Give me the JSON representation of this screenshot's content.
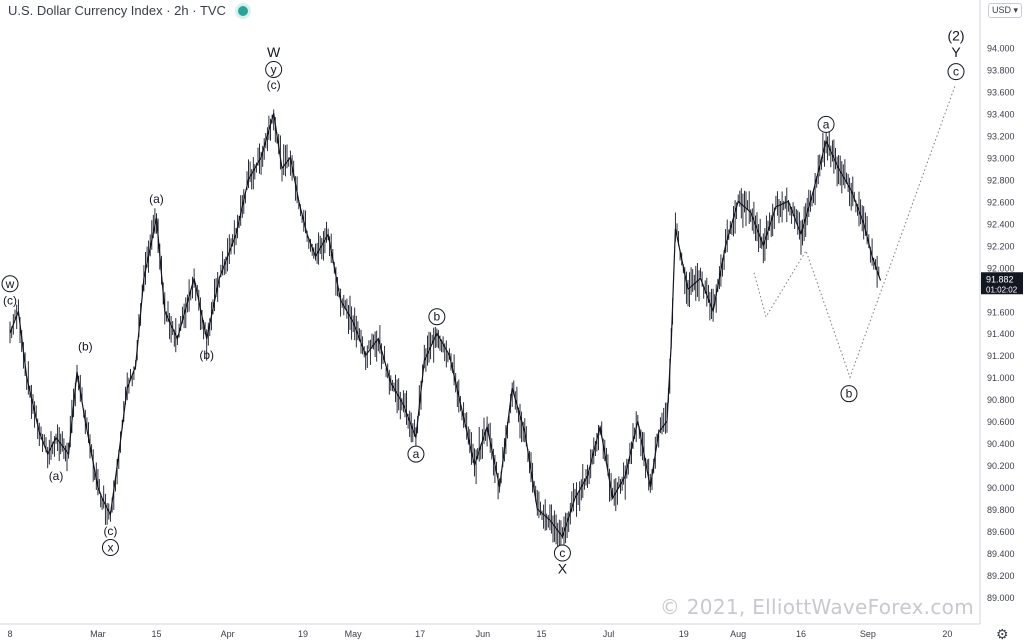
{
  "header": {
    "title": "U.S. Dollar Currency Index · 2h · TVC",
    "currency_select": "USD"
  },
  "watermark": "© 2021, ElliottWaveForex.com",
  "price_tag": {
    "value": "91.882",
    "countdown": "01:02:02",
    "bg": "#131722"
  },
  "colors": {
    "series": "#131722",
    "axis_text": "#3a3e4a",
    "grid": "#eceff4",
    "projection": "#787b86"
  },
  "icons": {
    "settings": "gear-icon"
  },
  "chart_data": {
    "type": "line",
    "title": "U.S. Dollar Currency Index · 2h · TVC",
    "xlabel": "",
    "ylabel": "",
    "ylim": [
      88.9,
      94.25
    ],
    "xlim": [
      "2021-02-08",
      "2021-09-23"
    ],
    "y_ticks": [
      89.0,
      89.2,
      89.4,
      89.6,
      89.8,
      90.0,
      90.2,
      90.4,
      90.6,
      90.8,
      91.0,
      91.2,
      91.4,
      91.6,
      91.8,
      92.0,
      92.2,
      92.4,
      92.6,
      92.8,
      93.0,
      93.2,
      93.4,
      93.6,
      93.8,
      94.0
    ],
    "y_tick_labels": [
      "89.000",
      "89.200",
      "89.400",
      "89.600",
      "89.800",
      "90.000",
      "90.200",
      "90.400",
      "90.600",
      "90.800",
      "91.000",
      "91.200",
      "91.400",
      "91.600",
      "91.800",
      "92.000",
      "92.200",
      "92.400",
      "92.600",
      "92.800",
      "93.000",
      "93.200",
      "93.400",
      "93.600",
      "93.800",
      "94.000"
    ],
    "x_ticks": [
      {
        "date": "2021-02-08",
        "label": "8"
      },
      {
        "date": "2021-03-01",
        "label": "Mar"
      },
      {
        "date": "2021-03-15",
        "label": "15"
      },
      {
        "date": "2021-04-01",
        "label": "Apr"
      },
      {
        "date": "2021-04-19",
        "label": "19"
      },
      {
        "date": "2021-05-01",
        "label": "May"
      },
      {
        "date": "2021-05-17",
        "label": "17"
      },
      {
        "date": "2021-06-01",
        "label": "Jun"
      },
      {
        "date": "2021-06-15",
        "label": "15"
      },
      {
        "date": "2021-07-01",
        "label": "Jul"
      },
      {
        "date": "2021-07-19",
        "label": "19"
      },
      {
        "date": "2021-08-01",
        "label": "Aug"
      },
      {
        "date": "2021-08-16",
        "label": "16"
      },
      {
        "date": "2021-09-01",
        "label": "Sep"
      },
      {
        "date": "2021-09-20",
        "label": "20"
      }
    ],
    "grid": false,
    "series": [
      {
        "points": [
          [
            "2021-02-08",
            91.4
          ],
          [
            "2021-02-10",
            91.6
          ],
          [
            "2021-02-12",
            91.0
          ],
          [
            "2021-02-15",
            90.5
          ],
          [
            "2021-02-17",
            90.3
          ],
          [
            "2021-02-19",
            90.45
          ],
          [
            "2021-02-22",
            90.3
          ],
          [
            "2021-02-24",
            91.05
          ],
          [
            "2021-02-26",
            90.6
          ],
          [
            "2021-03-01",
            90.0
          ],
          [
            "2021-03-02",
            89.9
          ],
          [
            "2021-03-04",
            89.75
          ],
          [
            "2021-03-06",
            90.3
          ],
          [
            "2021-03-08",
            90.9
          ],
          [
            "2021-03-10",
            91.1
          ],
          [
            "2021-03-12",
            91.9
          ],
          [
            "2021-03-15",
            92.45
          ],
          [
            "2021-03-17",
            91.6
          ],
          [
            "2021-03-20",
            91.35
          ],
          [
            "2021-03-24",
            91.9
          ],
          [
            "2021-03-27",
            91.35
          ],
          [
            "2021-03-30",
            91.9
          ],
          [
            "2021-04-03",
            92.3
          ],
          [
            "2021-04-06",
            92.8
          ],
          [
            "2021-04-09",
            93.0
          ],
          [
            "2021-04-12",
            93.4
          ],
          [
            "2021-04-14",
            92.9
          ],
          [
            "2021-04-16",
            93.0
          ],
          [
            "2021-04-18",
            92.6
          ],
          [
            "2021-04-20",
            92.3
          ],
          [
            "2021-04-22",
            92.1
          ],
          [
            "2021-04-25",
            92.3
          ],
          [
            "2021-04-28",
            91.7
          ],
          [
            "2021-05-01",
            91.5
          ],
          [
            "2021-05-04",
            91.2
          ],
          [
            "2021-05-07",
            91.35
          ],
          [
            "2021-05-10",
            90.95
          ],
          [
            "2021-05-13",
            90.75
          ],
          [
            "2021-05-16",
            90.45
          ],
          [
            "2021-05-18",
            91.15
          ],
          [
            "2021-05-21",
            91.4
          ],
          [
            "2021-05-24",
            91.2
          ],
          [
            "2021-05-27",
            90.7
          ],
          [
            "2021-05-30",
            90.2
          ],
          [
            "2021-06-02",
            90.55
          ],
          [
            "2021-06-05",
            90.0
          ],
          [
            "2021-06-08",
            90.9
          ],
          [
            "2021-06-11",
            90.5
          ],
          [
            "2021-06-14",
            89.8
          ],
          [
            "2021-06-17",
            89.7
          ],
          [
            "2021-06-20",
            89.55
          ],
          [
            "2021-06-23",
            89.9
          ],
          [
            "2021-06-26",
            90.1
          ],
          [
            "2021-06-29",
            90.55
          ],
          [
            "2021-07-02",
            89.9
          ],
          [
            "2021-07-05",
            90.1
          ],
          [
            "2021-07-08",
            90.6
          ],
          [
            "2021-07-11",
            90.0
          ],
          [
            "2021-07-13",
            90.5
          ],
          [
            "2021-07-15",
            90.6
          ],
          [
            "2021-07-16",
            91.3
          ],
          [
            "2021-07-17",
            92.35
          ],
          [
            "2021-07-20",
            91.8
          ],
          [
            "2021-07-23",
            91.9
          ],
          [
            "2021-07-26",
            91.6
          ],
          [
            "2021-07-29",
            92.2
          ],
          [
            "2021-08-01",
            92.6
          ],
          [
            "2021-08-04",
            92.5
          ],
          [
            "2021-08-07",
            92.2
          ],
          [
            "2021-08-10",
            92.55
          ],
          [
            "2021-08-13",
            92.6
          ],
          [
            "2021-08-16",
            92.3
          ],
          [
            "2021-08-19",
            92.7
          ],
          [
            "2021-08-22",
            93.15
          ],
          [
            "2021-08-25",
            92.9
          ],
          [
            "2021-08-28",
            92.7
          ],
          [
            "2021-08-31",
            92.4
          ],
          [
            "2021-09-02",
            92.1
          ],
          [
            "2021-09-04",
            91.88
          ]
        ]
      }
    ],
    "projection": [
      [
        "2021-09-05",
        91.95
      ],
      [
        "2021-09-11",
        91.55
      ],
      [
        "2021-09-21",
        92.15
      ],
      [
        "2021-09-23",
        91.0
      ],
      [
        "2021-09-23",
        93.65
      ]
    ],
    "annotations": [
      {
        "text": "w",
        "circled": true,
        "date": "2021-02-08",
        "y": 91.85
      },
      {
        "text": "(c)",
        "circled": false,
        "date": "2021-02-08",
        "y": 91.7
      },
      {
        "text": "(b)",
        "circled": false,
        "date": "2021-02-26",
        "y": 91.28
      },
      {
        "text": "(a)",
        "circled": false,
        "date": "2021-02-19",
        "y": 90.1
      },
      {
        "text": "(c)",
        "circled": false,
        "date": "2021-03-04",
        "y": 89.6
      },
      {
        "text": "x",
        "circled": true,
        "date": "2021-03-04",
        "y": 89.45
      },
      {
        "text": "(a)",
        "circled": false,
        "date": "2021-03-15",
        "y": 92.62
      },
      {
        "text": "(b)",
        "circled": false,
        "date": "2021-03-27",
        "y": 91.2
      },
      {
        "text": "W",
        "circled": false,
        "date": "2021-04-12",
        "y": 93.95
      },
      {
        "text": "y",
        "circled": true,
        "date": "2021-04-12",
        "y": 93.8
      },
      {
        "text": "(c)",
        "circled": false,
        "date": "2021-04-12",
        "y": 93.66
      },
      {
        "text": "b",
        "circled": true,
        "date": "2021-05-21",
        "y": 91.55
      },
      {
        "text": "a",
        "circled": true,
        "date": "2021-05-16",
        "y": 90.3
      },
      {
        "text": "c",
        "circled": true,
        "date": "2021-06-20",
        "y": 89.4
      },
      {
        "text": "X",
        "circled": false,
        "date": "2021-06-20",
        "y": 89.25
      },
      {
        "text": "a",
        "circled": true,
        "date": "2021-08-22",
        "y": 93.3
      },
      {
        "text": "b",
        "circled": true,
        "date": "2021-09-23",
        "y": 90.85
      },
      {
        "text": "(2)",
        "circled": false,
        "date": "2021-09-23",
        "y": 94.1
      },
      {
        "text": "Y",
        "circled": false,
        "date": "2021-09-23",
        "y": 93.95
      },
      {
        "text": "c",
        "circled": true,
        "date": "2021-09-23",
        "y": 93.78
      }
    ]
  }
}
